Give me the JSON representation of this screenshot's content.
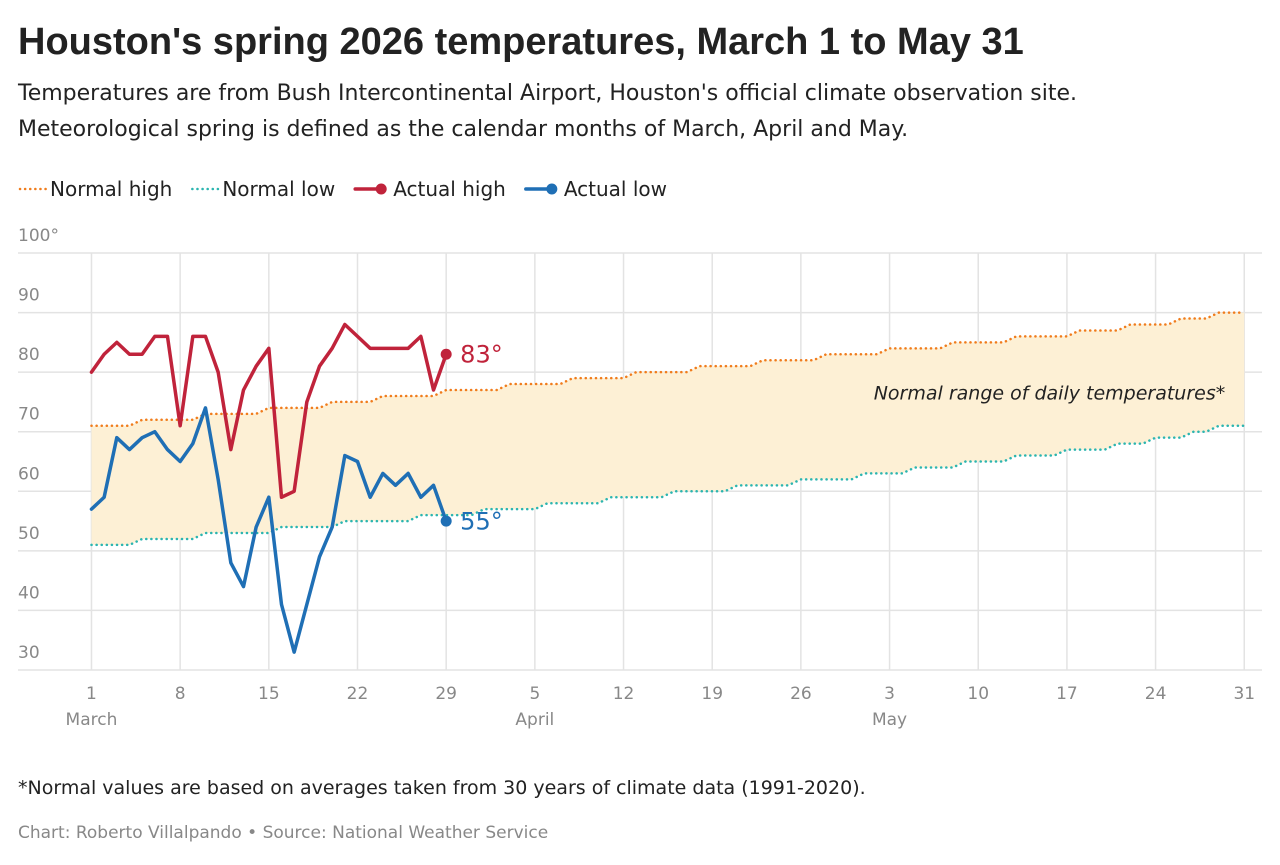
{
  "chart_data": {
    "type": "line",
    "title": "Houston's spring 2026 temperatures, March 1 to May 31",
    "subtitle": [
      "Temperatures are from Bush Intercontinental Airport, Houston's official climate observation site.",
      "Meteorological spring is defined as the calendar months of March, April and May."
    ],
    "annotation": "Normal range of daily temperatures*",
    "footnote": "*Normal values are based on averages taken from 30 years of climate data (1991-2020).",
    "credit": "Chart: Roberto Villalpando • Source: National Weather Service",
    "x": [
      1,
      2,
      3,
      4,
      5,
      6,
      7,
      8,
      9,
      10,
      11,
      12,
      13,
      14,
      15,
      16,
      17,
      18,
      19,
      20,
      21,
      22,
      23,
      24,
      25,
      26,
      27,
      28,
      29,
      30,
      31,
      32,
      33,
      34,
      35,
      36,
      37,
      38,
      39,
      40,
      41,
      42,
      43,
      44,
      45,
      46,
      47,
      48,
      49,
      50,
      51,
      52,
      53,
      54,
      55,
      56,
      57,
      58,
      59,
      60,
      61,
      62,
      63,
      64,
      65,
      66,
      67,
      68,
      69,
      70,
      71,
      72,
      73,
      74,
      75,
      76,
      77,
      78,
      79,
      80,
      81,
      82,
      83,
      84,
      85,
      86,
      87,
      88,
      89,
      90,
      91,
      92
    ],
    "xlim": [
      -4.8,
      93.4
    ],
    "xticks": [
      1,
      8,
      15,
      22,
      29,
      {
        "value": 36,
        "label": "5"
      },
      {
        "value": 43,
        "label": "12"
      },
      {
        "value": 50,
        "label": "19"
      },
      {
        "value": 57,
        "label": "26"
      },
      {
        "value": 64,
        "label": "3"
      },
      {
        "value": 71,
        "label": "10"
      },
      {
        "value": 78,
        "label": "17"
      },
      {
        "value": 85,
        "label": "24"
      },
      {
        "value": 92,
        "label": "31"
      }
    ],
    "months": [
      {
        "value": 1,
        "label": "March"
      },
      {
        "value": 36,
        "label": "April"
      },
      {
        "value": 64,
        "label": "May"
      }
    ],
    "ylim": [
      30,
      100
    ],
    "yticks": [
      30,
      40,
      50,
      60,
      70,
      80,
      90,
      {
        "value": 100,
        "label": "100°"
      }
    ],
    "grid": true,
    "band_color": "#fdf0d5",
    "series": [
      {
        "name": "Normal high",
        "color": "#f07c1c",
        "style": "dotted",
        "values": [
          71,
          71,
          71,
          71,
          72,
          72,
          72,
          72,
          72,
          73,
          73,
          73,
          73,
          73,
          74,
          74,
          74,
          74,
          74,
          75,
          75,
          75,
          75,
          76,
          76,
          76,
          76,
          76,
          77,
          77,
          77,
          77,
          77,
          78,
          78,
          78,
          78,
          78,
          79,
          79,
          79,
          79,
          79,
          80,
          80,
          80,
          80,
          80,
          81,
          81,
          81,
          81,
          81,
          82,
          82,
          82,
          82,
          82,
          83,
          83,
          83,
          83,
          83,
          84,
          84,
          84,
          84,
          84,
          85,
          85,
          85,
          85,
          85,
          86,
          86,
          86,
          86,
          86,
          87,
          87,
          87,
          87,
          88,
          88,
          88,
          88,
          89,
          89,
          89,
          90,
          90,
          90
        ]
      },
      {
        "name": "Normal low",
        "color": "#2bb5b0",
        "style": "dotted",
        "values": [
          51,
          51,
          51,
          51,
          52,
          52,
          52,
          52,
          52,
          53,
          53,
          53,
          53,
          53,
          53,
          54,
          54,
          54,
          54,
          54,
          55,
          55,
          55,
          55,
          55,
          55,
          56,
          56,
          56,
          56,
          56,
          57,
          57,
          57,
          57,
          57,
          58,
          58,
          58,
          58,
          58,
          59,
          59,
          59,
          59,
          59,
          60,
          60,
          60,
          60,
          60,
          61,
          61,
          61,
          61,
          61,
          62,
          62,
          62,
          62,
          62,
          63,
          63,
          63,
          63,
          64,
          64,
          64,
          64,
          65,
          65,
          65,
          65,
          66,
          66,
          66,
          66,
          67,
          67,
          67,
          67,
          68,
          68,
          68,
          69,
          69,
          69,
          70,
          70,
          71,
          71,
          71
        ]
      },
      {
        "name": "Actual high",
        "color": "#c0233b",
        "style": "solid",
        "values": [
          80,
          83,
          85,
          83,
          83,
          86,
          86,
          71,
          86,
          86,
          80,
          67,
          77,
          81,
          84,
          59,
          60,
          75,
          81,
          84,
          88,
          86,
          84,
          84,
          84,
          84,
          86,
          77,
          83,
          null,
          null,
          null,
          null,
          null,
          null,
          null,
          null,
          null,
          null,
          null,
          null,
          null,
          null,
          null,
          null,
          null,
          null,
          null,
          null,
          null,
          null,
          null,
          null,
          null,
          null,
          null,
          null,
          null,
          null,
          null,
          null,
          null,
          null,
          null,
          null,
          null,
          null,
          null,
          null,
          null,
          null,
          null,
          null,
          null,
          null,
          null,
          null,
          null,
          null,
          null,
          null,
          null,
          null,
          null,
          null,
          null,
          null,
          null,
          null,
          null,
          null,
          null
        ],
        "value_labels": [
          null,
          null,
          null,
          null,
          null,
          null,
          null,
          null,
          null,
          null,
          null,
          null,
          null,
          null,
          null,
          null,
          null,
          null,
          null,
          null,
          null,
          null,
          null,
          null,
          null,
          null,
          null,
          null,
          "83°",
          null,
          null,
          null,
          null,
          null,
          null,
          null,
          null,
          null,
          null,
          null,
          null,
          null,
          null,
          null,
          null,
          null,
          null,
          null,
          null,
          null,
          null,
          null,
          null,
          null,
          null,
          null,
          null,
          null,
          null,
          null,
          null,
          null,
          null,
          null,
          null,
          null,
          null,
          null,
          null,
          null,
          null,
          null,
          null,
          null,
          null,
          null,
          null,
          null,
          null,
          null,
          null,
          null,
          null,
          null,
          null,
          null,
          null,
          null,
          null,
          null,
          null,
          null
        ]
      },
      {
        "name": "Actual low",
        "color": "#1f6fb5",
        "style": "solid",
        "values": [
          57,
          59,
          69,
          67,
          69,
          70,
          67,
          65,
          68,
          74,
          62,
          48,
          44,
          54,
          59,
          41,
          33,
          41,
          49,
          54,
          66,
          65,
          59,
          63,
          61,
          63,
          59,
          61,
          55,
          null,
          null,
          null,
          null,
          null,
          null,
          null,
          null,
          null,
          null,
          null,
          null,
          null,
          null,
          null,
          null,
          null,
          null,
          null,
          null,
          null,
          null,
          null,
          null,
          null,
          null,
          null,
          null,
          null,
          null,
          null,
          null,
          null,
          null,
          null,
          null,
          null,
          null,
          null,
          null,
          null,
          null,
          null,
          null,
          null,
          null,
          null,
          null,
          null,
          null,
          null,
          null,
          null,
          null,
          null,
          null,
          null,
          null,
          null,
          null,
          null,
          null,
          null
        ],
        "value_labels": [
          null,
          null,
          null,
          null,
          null,
          null,
          null,
          null,
          null,
          null,
          null,
          null,
          null,
          null,
          null,
          null,
          null,
          null,
          null,
          null,
          null,
          null,
          null,
          null,
          null,
          null,
          null,
          null,
          "55°",
          null,
          null,
          null,
          null,
          null,
          null,
          null,
          null,
          null,
          null,
          null,
          null,
          null,
          null,
          null,
          null,
          null,
          null,
          null,
          null,
          null,
          null,
          null,
          null,
          null,
          null,
          null,
          null,
          null,
          null,
          null,
          null,
          null,
          null,
          null,
          null,
          null,
          null,
          null,
          null,
          null,
          null,
          null,
          null,
          null,
          null,
          null,
          null,
          null,
          null,
          null,
          null,
          null,
          null,
          null,
          null,
          null,
          null,
          null,
          null,
          null,
          null,
          null
        ]
      }
    ]
  }
}
